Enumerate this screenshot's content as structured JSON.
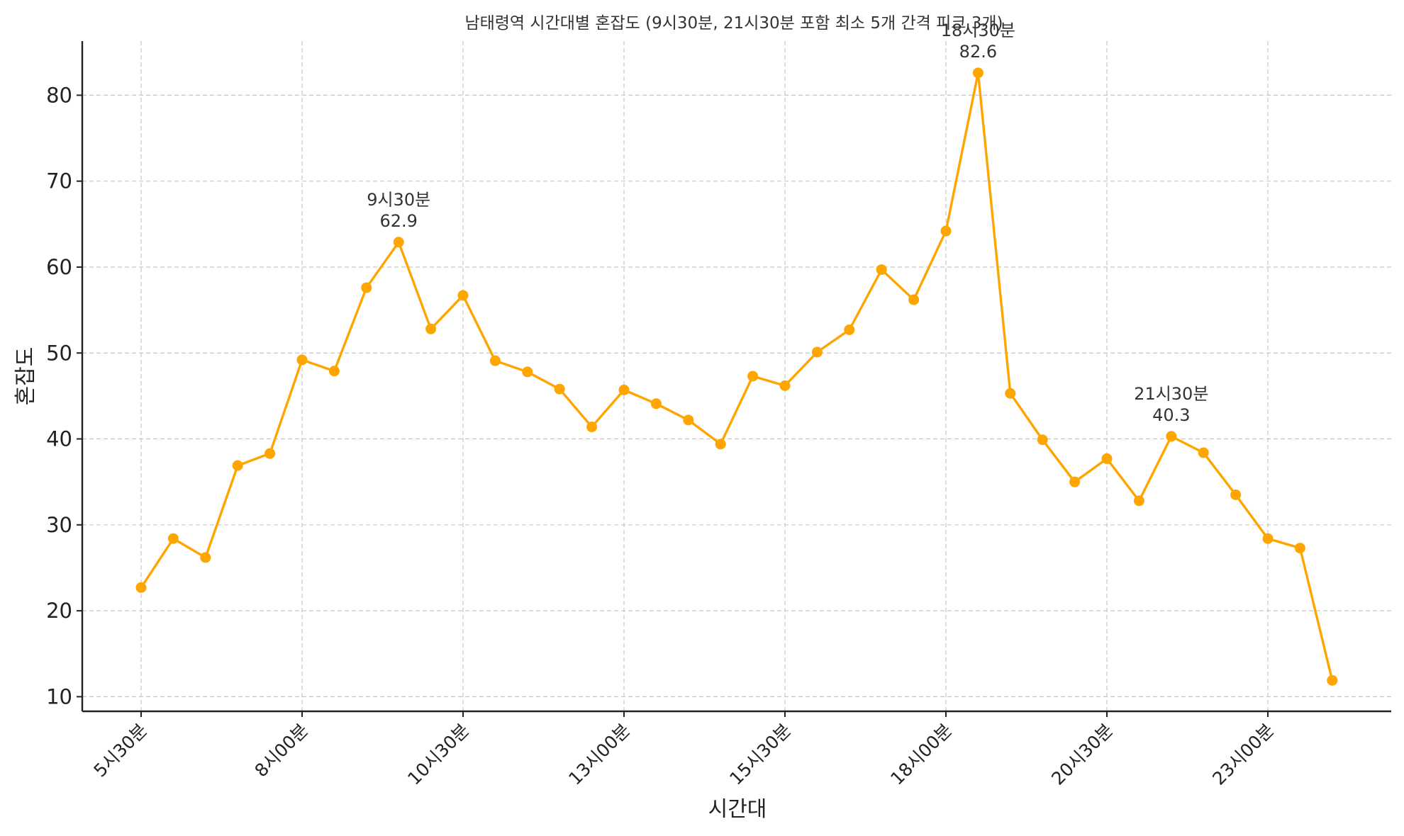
{
  "chart_data": {
    "type": "line",
    "title": "남태령역 시간대별 혼잡도 (9시30분, 21시30분 포함 최소 5개 간격 피크 3개)",
    "xlabel": "시간대",
    "ylabel": "혼잡도",
    "ylim": [
      8.3,
      86.3
    ],
    "yticks": [
      10,
      20,
      30,
      40,
      50,
      60,
      70,
      80
    ],
    "grid": true,
    "color": "#FFA500",
    "x": [
      "5시30분",
      "6시00분",
      "6시30분",
      "7시00분",
      "7시30분",
      "8시00분",
      "8시30분",
      "9시00분",
      "9시30분",
      "10시00분",
      "10시30분",
      "11시00분",
      "11시30분",
      "12시00분",
      "12시30분",
      "13시00분",
      "13시30분",
      "14시00분",
      "14시30분",
      "15시00분",
      "15시30분",
      "16시00분",
      "16시30분",
      "17시00분",
      "17시30분",
      "18시00분",
      "18시30분",
      "19시00분",
      "19시30분",
      "20시00분",
      "20시30분",
      "21시00분",
      "21시30분",
      "22시00분",
      "22시30분",
      "23시00분",
      "23시30분",
      "24시00분"
    ],
    "xtick_labels": [
      "5시30분",
      "8시00분",
      "10시30분",
      "13시00분",
      "15시30분",
      "18시00분",
      "20시30분",
      "23시00분"
    ],
    "xtick_indices": [
      0,
      5,
      10,
      15,
      20,
      25,
      30,
      35
    ],
    "values": [
      22.7,
      28.4,
      26.2,
      36.9,
      38.3,
      49.2,
      47.9,
      57.6,
      62.9,
      52.8,
      56.7,
      49.1,
      47.8,
      45.8,
      41.4,
      45.7,
      44.1,
      42.2,
      39.4,
      47.3,
      46.2,
      50.1,
      52.7,
      59.7,
      56.2,
      64.2,
      82.6,
      45.3,
      39.9,
      35.0,
      37.7,
      32.8,
      40.3,
      38.4,
      33.5,
      28.4,
      27.3,
      11.9
    ],
    "annotations": [
      {
        "index": 8,
        "label": "9시30분",
        "value": "62.9"
      },
      {
        "index": 26,
        "label": "18시30분",
        "value": "82.6"
      },
      {
        "index": 32,
        "label": "21시30분",
        "value": "40.3"
      }
    ]
  }
}
